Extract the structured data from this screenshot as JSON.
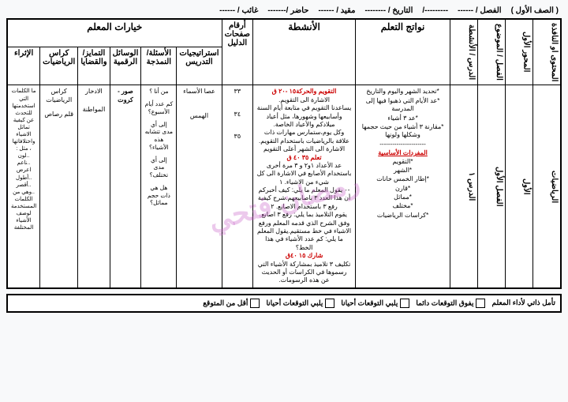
{
  "header": {
    "grade": "( الصف الأول )",
    "class_label": "الفصل / ------",
    "semester": "---------/",
    "date_label": "التاريخ / --------",
    "restricted": "مقيد / ------",
    "present": "حاضر /-------",
    "absent": "غائب / ------"
  },
  "watermark": "رمضان فتحي",
  "columns": {
    "content": "المحتوى او النافذة",
    "axis": "المحور الأول",
    "chapter": "الفصل / الموضوع",
    "lesson": "الدرس / الأنشطة",
    "outcomes": "نواتج التعلم",
    "activities": "الأنشطة",
    "pages": "أرقام صفحات الدليل",
    "strategies": "استراتيجيات التدريس",
    "modeling": "الأسئلة/ النمذجة",
    "tools": "الوسائل الرقمية",
    "diff": "التمايز/ والقضايا",
    "math_books": "كراس الرياضيات",
    "enrich": "الإثراء"
  },
  "options_header": "خيارات المعلم",
  "row": {
    "content": "الرياضيات",
    "axis": "الأول",
    "chapter": "الفصل الأول",
    "lesson": "الدرس ١",
    "outcomes_lines": [
      "*تحديد الشهر واليوم والتاريخ",
      "*عد الأيام التي ذهبوا فيها إلى المدرسة",
      "*عد ٣ أشياء",
      "*مقارنة ٣ أشياء من حيث حجمها وشكلها ولونها",
      "----------------------"
    ],
    "vocab_title": "المفردات الأساسية",
    "vocab": [
      "*التقويم",
      "*الشهر",
      "*إطار الخمس خانات",
      "*قارن",
      "*مماثل",
      "*مختلف",
      "*كراسات الرياضيات"
    ],
    "act1_title": "التقويم والحركة١٥ -٢٠ ق",
    "act1_lines": [
      "الاشارة الى التقويم.",
      "يساعدنا التقويم في متابعة أيام السنة وأسابيعها وشهورها، مثل أعياد ميلادكم والأعياد الخاصة.",
      "وكل يوم،ستمارس مهارات ذات علاقة بالرياضيات باستخدام التقويم. الاشارة الى الشهر أعلى التقويم"
    ],
    "act2_title": "تعلم ٣٥ ٤٠ ق",
    "act2_lines": [
      "عد الأعداد ١و٢ و ٣ مرة أخرى باستخدام الأصابع في الاشارة الى كل شيء من الاشياء. ١",
      "-٠ يقول المعلم ما يلي: كيف أخبركم أن هذا العدد ٣ باصابيعهم.شرح كيفية رفع ٣ باستخدام الاصابع. ٢",
      "يقوم التلاميذ بما يلي: رفع ٣ اصابع وفق الشرح الذي قدمه المعلم ورفع الاشياء في خط مستقيم.يقول المعلم ما يلي: كم عدد الأشياء في هذا الخط؟"
    ],
    "act3_title": "شارك ١٥ ٤٠ق",
    "act3_lines": [
      "تكليف ٣ تلاميذ بمشاركة الأشياء التي رسموها في الكراسات أو الحديث عن هذه الرسومات."
    ],
    "pages": [
      "٣٣",
      "٣٤",
      "٣٥"
    ],
    "strategies": [
      "عصا الأسماء",
      "الهمس"
    ],
    "modeling": [
      "من أنا ؟",
      "كم عدد أيام الأسبوع؟",
      "إلى أي مدى تتشابه هذه الأشياء؟",
      "إلى أي مدى تختلف؟",
      "هل هي ذات حجم مماثل؟"
    ],
    "tools": "صور - كروت",
    "diff": [
      "الادخار",
      "المواطنة"
    ],
    "math_books": [
      "كراس الرياضيات",
      "قلم رصاص"
    ],
    "enrich": "ما الكلمات التي استخدمتها للتحدث عن كيفية تماثل الاشياء واختلافاتها ، مثل : ..لون ..ناعم اعرض ..أطول ..أقصر ..وهي من الكلمات المستخدمة لوصف الأشياء المختلفة"
  },
  "footer": {
    "label": "تأمل ذاتي لأداء المعلم",
    "opts": [
      "يفوق التوقعات دائما",
      "يلبي التوقعات أحيانا",
      "يلبي التوقعات أحيانا",
      "أقل من المتوقع"
    ]
  }
}
